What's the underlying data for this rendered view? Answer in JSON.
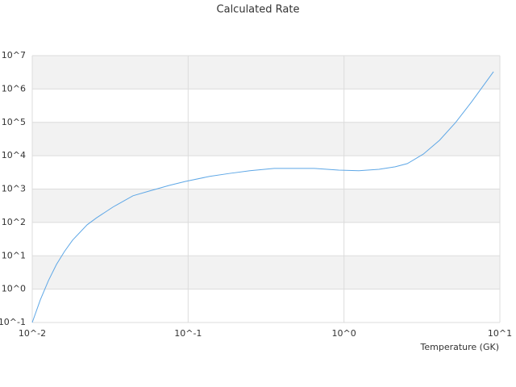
{
  "chart_data": {
    "type": "line",
    "title": "Calculated Rate",
    "x_label": "Temperature (GK)",
    "log_x": true,
    "log_y": true,
    "grid": true,
    "xlim": [
      0.01,
      10
    ],
    "ylim": [
      0.1,
      10000000
    ],
    "xticks": [
      {
        "value": 0.01,
        "label": "10^-2"
      },
      {
        "value": 0.1,
        "label": "10^-1"
      },
      {
        "value": 1,
        "label": "10^0"
      },
      {
        "value": 10,
        "label": "10^1"
      }
    ],
    "yticks": [
      {
        "value": 0.1,
        "label": "10^-1"
      },
      {
        "value": 1,
        "label": "10^0"
      },
      {
        "value": 10,
        "label": "10^1"
      },
      {
        "value": 100,
        "label": "10^2"
      },
      {
        "value": 1000,
        "label": "10^3"
      },
      {
        "value": 10000,
        "label": "10^4"
      },
      {
        "value": 100000,
        "label": "10^5"
      },
      {
        "value": 1000000,
        "label": "10^6"
      },
      {
        "value": 10000000,
        "label": "10^7"
      }
    ],
    "x": [
      0.01,
      0.01127,
      0.0127,
      0.0143,
      0.0161,
      0.01815,
      0.0225,
      0.0259,
      0.0329,
      0.0443,
      0.0562,
      0.0759,
      0.0962,
      0.1375,
      0.185,
      0.249,
      0.356,
      0.646,
      0.925,
      1.245,
      1.675,
      2.13,
      2.55,
      3.23,
      4.1,
      5.2,
      6.6,
      9.1
    ],
    "series": [
      {
        "color": "#5ea7e6",
        "values": [
          0.1,
          0.48,
          1.8,
          5.5,
          13.5,
          29.5,
          85,
          138,
          288,
          630,
          870,
          1290,
          1700,
          2400,
          2950,
          3550,
          4170,
          4170,
          3700,
          3550,
          3900,
          4650,
          5800,
          11200,
          29000,
          98800,
          417000,
          3300000
        ]
      }
    ]
  }
}
